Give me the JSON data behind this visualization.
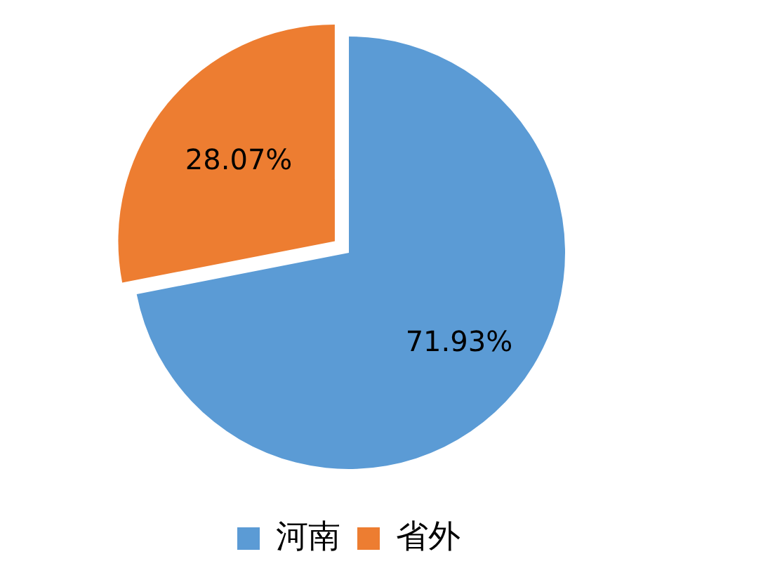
{
  "chart_data": {
    "type": "pie",
    "categories": [
      "河南",
      "省外"
    ],
    "values": [
      71.93,
      28.07
    ],
    "colors": [
      "#5b9bd5",
      "#ed7d31"
    ],
    "value_labels": [
      "71.93%",
      "28.07%"
    ],
    "legend": "bottom"
  }
}
